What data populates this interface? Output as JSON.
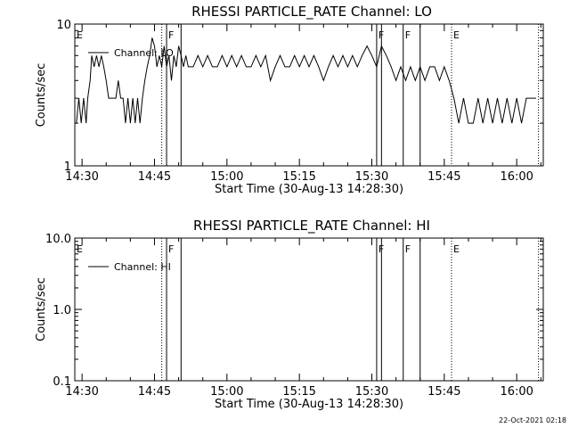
{
  "footer": {
    "timestamp": "22-Oct-2021 02:18"
  },
  "chart_data": [
    {
      "type": "line",
      "title": "RHESSI PARTICLE_RATE Channel: LO",
      "xlabel": "Start Time (30-Aug-13 14:28:30)",
      "ylabel": "Counts/sec",
      "yscale": "log",
      "xlim": [
        "14:28:30",
        "16:05:30"
      ],
      "ylim": [
        1,
        10
      ],
      "x_ticks": [
        "14:30",
        "14:45",
        "15:00",
        "15:15",
        "15:30",
        "15:45",
        "16:00"
      ],
      "y_ticks": [
        "1",
        "10"
      ],
      "legend": {
        "entries": [
          "Channel: LO"
        ],
        "placement": "top-left"
      },
      "markers": [
        {
          "label": "E",
          "x": "14:28:30",
          "style": "dotted"
        },
        {
          "label": "",
          "x": "14:46:30",
          "style": "dotted"
        },
        {
          "label": "F",
          "x": "14:47:30",
          "style": "solid"
        },
        {
          "label": "",
          "x": "14:50:30",
          "style": "solid"
        },
        {
          "label": "F",
          "x": "15:31:00",
          "style": "solid"
        },
        {
          "label": "",
          "x": "15:32:00",
          "style": "solid"
        },
        {
          "label": "F",
          "x": "15:36:30",
          "style": "solid"
        },
        {
          "label": "",
          "x": "15:40:00",
          "style": "solid"
        },
        {
          "label": "E",
          "x": "15:46:30",
          "style": "dotted"
        },
        {
          "label": "",
          "x": "16:04:30",
          "style": "dotted"
        }
      ],
      "series": [
        {
          "name": "Channel: LO",
          "x": [
            "14:28:50",
            "14:29:20",
            "14:29:50",
            "14:30:20",
            "14:30:50",
            "14:31:10",
            "14:31:40",
            "14:32:00",
            "14:32:30",
            "14:33:00",
            "14:33:30",
            "14:34:00",
            "14:34:30",
            "14:35:00",
            "14:35:30",
            "14:36:00",
            "14:36:30",
            "14:37:00",
            "14:37:30",
            "14:38:00",
            "14:38:30",
            "14:39:00",
            "14:39:30",
            "14:40:00",
            "14:40:30",
            "14:41:00",
            "14:41:30",
            "14:42:00",
            "14:42:30",
            "14:43:00",
            "14:43:30",
            "14:44:00",
            "14:44:30",
            "14:45:00",
            "14:45:30",
            "14:46:00",
            "14:46:30",
            "14:47:00",
            "14:47:30",
            "14:48:00",
            "14:48:30",
            "14:49:00",
            "14:49:30",
            "14:50:00",
            "14:50:30",
            "14:51:00",
            "14:51:30",
            "14:52:00",
            "14:53:00",
            "14:54:00",
            "14:55:00",
            "14:56:00",
            "14:57:00",
            "14:58:00",
            "14:59:00",
            "15:00:00",
            "15:01:00",
            "15:02:00",
            "15:03:00",
            "15:04:00",
            "15:05:00",
            "15:06:00",
            "15:07:00",
            "15:08:00",
            "15:09:00",
            "15:10:00",
            "15:11:00",
            "15:12:00",
            "15:13:00",
            "15:14:00",
            "15:15:00",
            "15:16:00",
            "15:17:00",
            "15:18:00",
            "15:19:00",
            "15:20:00",
            "15:21:00",
            "15:22:00",
            "15:23:00",
            "15:24:00",
            "15:25:00",
            "15:26:00",
            "15:27:00",
            "15:28:00",
            "15:29:00",
            "15:30:00",
            "15:31:00",
            "15:32:00",
            "15:33:00",
            "15:34:00",
            "15:35:00",
            "15:36:00",
            "15:37:00",
            "15:38:00",
            "15:39:00",
            "15:40:00",
            "15:41:00",
            "15:42:00",
            "15:43:00",
            "15:44:00",
            "15:45:00",
            "15:46:00",
            "15:47:00",
            "15:48:00",
            "15:49:00",
            "15:50:00",
            "15:51:00",
            "15:52:00",
            "15:53:00",
            "15:54:00",
            "15:55:00",
            "15:56:00",
            "15:57:00",
            "15:58:00",
            "15:59:00",
            "16:00:00",
            "16:01:00",
            "16:02:00",
            "16:03:00",
            "16:04:00"
          ],
          "y": [
            2.0,
            3.0,
            2.0,
            3.0,
            2.0,
            3.0,
            4.0,
            6.0,
            5.0,
            6.0,
            5.0,
            6.0,
            5.0,
            4.0,
            3.0,
            3.0,
            3.0,
            3.0,
            4.0,
            3.0,
            3.0,
            2.0,
            3.0,
            2.0,
            3.0,
            2.0,
            3.0,
            2.0,
            3.0,
            4.0,
            5.0,
            6.0,
            8.0,
            7.0,
            5.0,
            6.0,
            5.0,
            7.0,
            5.0,
            6.0,
            4.0,
            6.0,
            5.0,
            7.0,
            6.0,
            5.0,
            6.0,
            5.0,
            5.0,
            6.0,
            5.0,
            6.0,
            5.0,
            5.0,
            6.0,
            5.0,
            6.0,
            5.0,
            6.0,
            5.0,
            5.0,
            6.0,
            5.0,
            6.0,
            4.0,
            5.0,
            6.0,
            5.0,
            5.0,
            6.0,
            5.0,
            6.0,
            5.0,
            6.0,
            5.0,
            4.0,
            5.0,
            6.0,
            5.0,
            6.0,
            5.0,
            6.0,
            5.0,
            6.0,
            7.0,
            6.0,
            5.0,
            7.0,
            6.0,
            5.0,
            4.0,
            5.0,
            4.0,
            5.0,
            4.0,
            5.0,
            4.0,
            5.0,
            5.0,
            4.0,
            5.0,
            4.0,
            3.0,
            2.0,
            3.0,
            2.0,
            2.0,
            3.0,
            2.0,
            3.0,
            2.0,
            3.0,
            2.0,
            3.0,
            2.0,
            3.0,
            2.0,
            3.0,
            3.0,
            3.0
          ]
        }
      ]
    },
    {
      "type": "line",
      "title": "RHESSI PARTICLE_RATE Channel: HI",
      "xlabel": "Start Time (30-Aug-13 14:28:30)",
      "ylabel": "Counts/sec",
      "yscale": "log",
      "xlim": [
        "14:28:30",
        "16:05:30"
      ],
      "ylim": [
        0.1,
        10
      ],
      "x_ticks": [
        "14:30",
        "14:45",
        "15:00",
        "15:15",
        "15:30",
        "15:45",
        "16:00"
      ],
      "y_ticks": [
        "0.1",
        "1.0",
        "10.0"
      ],
      "legend": {
        "entries": [
          "Channel: HI"
        ],
        "placement": "top-left"
      },
      "markers": [
        {
          "label": "E",
          "x": "14:28:30",
          "style": "dotted"
        },
        {
          "label": "",
          "x": "14:46:30",
          "style": "dotted"
        },
        {
          "label": "F",
          "x": "14:47:30",
          "style": "solid"
        },
        {
          "label": "",
          "x": "14:50:30",
          "style": "solid"
        },
        {
          "label": "F",
          "x": "15:31:00",
          "style": "solid"
        },
        {
          "label": "",
          "x": "15:32:00",
          "style": "solid"
        },
        {
          "label": "F",
          "x": "15:36:30",
          "style": "solid"
        },
        {
          "label": "",
          "x": "15:40:00",
          "style": "solid"
        },
        {
          "label": "E",
          "x": "15:46:30",
          "style": "dotted"
        },
        {
          "label": "",
          "x": "16:04:30",
          "style": "dotted"
        }
      ],
      "series": [
        {
          "name": "Channel: HI",
          "x": [],
          "y": []
        }
      ]
    }
  ]
}
